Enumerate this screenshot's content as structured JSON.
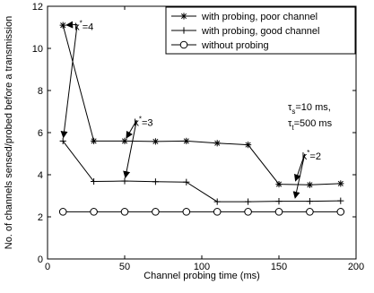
{
  "chart_data": {
    "type": "line",
    "xlabel": "Channel probing time (ms)",
    "ylabel": "No. of channels sensed/probed before a transmission",
    "xlim": [
      0,
      200
    ],
    "ylim": [
      0,
      12
    ],
    "xticks": [
      0,
      50,
      100,
      150,
      200
    ],
    "yticks": [
      0,
      2,
      4,
      6,
      8,
      10,
      12
    ],
    "grid": false,
    "legend_position": "top-right",
    "series": [
      {
        "name": "with probing, poor channel",
        "marker": "asterisk",
        "x": [
          10,
          30,
          50,
          70,
          90,
          110,
          130,
          150,
          170,
          190
        ],
        "y": [
          11.1,
          5.6,
          5.6,
          5.58,
          5.6,
          5.5,
          5.42,
          3.55,
          3.52,
          3.58
        ]
      },
      {
        "name": "with probing, good channel",
        "marker": "plus",
        "x": [
          10,
          30,
          50,
          70,
          90,
          110,
          130,
          150,
          170,
          190
        ],
        "y": [
          5.6,
          3.68,
          3.7,
          3.67,
          3.65,
          2.72,
          2.72,
          2.74,
          2.74,
          2.76
        ]
      },
      {
        "name": "without probing",
        "marker": "circle",
        "x": [
          10,
          30,
          50,
          70,
          90,
          110,
          130,
          150,
          170,
          190
        ],
        "y": [
          2.24,
          2.24,
          2.24,
          2.24,
          2.24,
          2.24,
          2.24,
          2.24,
          2.24,
          2.24
        ]
      }
    ],
    "annotations": {
      "params_line1": {
        "base": "τ",
        "sub": "s",
        "rest": "=10 ms,"
      },
      "params_line2": {
        "base": "τ",
        "sub": "t",
        "rest": "=500 ms"
      },
      "k_labels": [
        {
          "base": "k",
          "sup": "*",
          "rest": "=4",
          "x": 17.5,
          "y": 11.05,
          "targets": [
            [
              10,
              11.1
            ],
            [
              10,
              5.6
            ]
          ]
        },
        {
          "base": "k",
          "sup": "*",
          "rest": "=3",
          "x": 56,
          "y": 6.5,
          "targets": [
            [
              50,
              5.6
            ],
            [
              50,
              3.7
            ]
          ]
        },
        {
          "base": "k",
          "sup": "*",
          "rest": "=2",
          "x": 165,
          "y": 4.9,
          "targets": [
            [
              160,
              3.55
            ],
            [
              160,
              2.73
            ]
          ]
        }
      ]
    }
  }
}
